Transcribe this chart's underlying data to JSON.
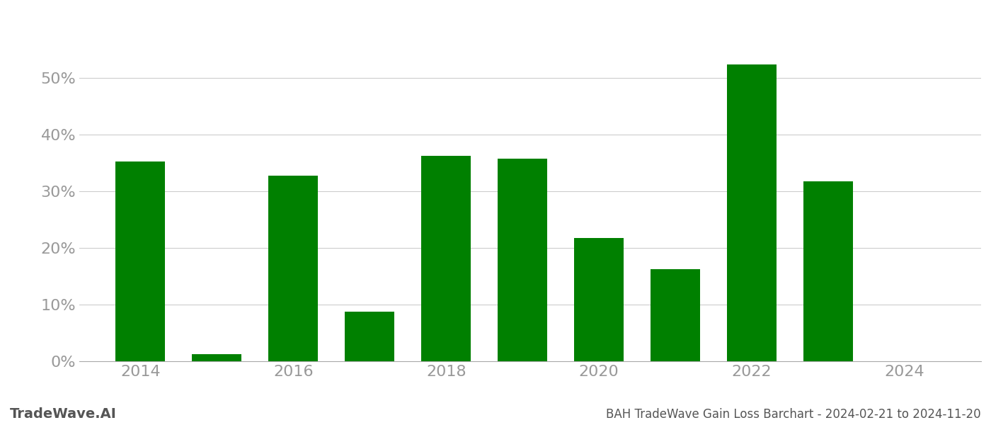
{
  "years": [
    2014,
    2015,
    2016,
    2017,
    2018,
    2019,
    2020,
    2021,
    2022,
    2023,
    2024
  ],
  "values": [
    0.352,
    0.012,
    0.328,
    0.088,
    0.362,
    0.358,
    0.218,
    0.162,
    0.524,
    0.318,
    0.0
  ],
  "bar_color": "#008000",
  "background_color": "#ffffff",
  "grid_color": "#cccccc",
  "title": "BAH TradeWave Gain Loss Barchart - 2024-02-21 to 2024-11-20",
  "watermark": "TradeWave.AI",
  "ylim": [
    0,
    0.6
  ],
  "yticks": [
    0.0,
    0.1,
    0.2,
    0.3,
    0.4,
    0.5
  ],
  "xticks": [
    2014,
    2016,
    2018,
    2020,
    2022,
    2024
  ],
  "title_fontsize": 12,
  "watermark_fontsize": 14,
  "tick_fontsize": 16,
  "axis_label_color": "#999999",
  "title_color": "#555555",
  "watermark_color": "#555555"
}
